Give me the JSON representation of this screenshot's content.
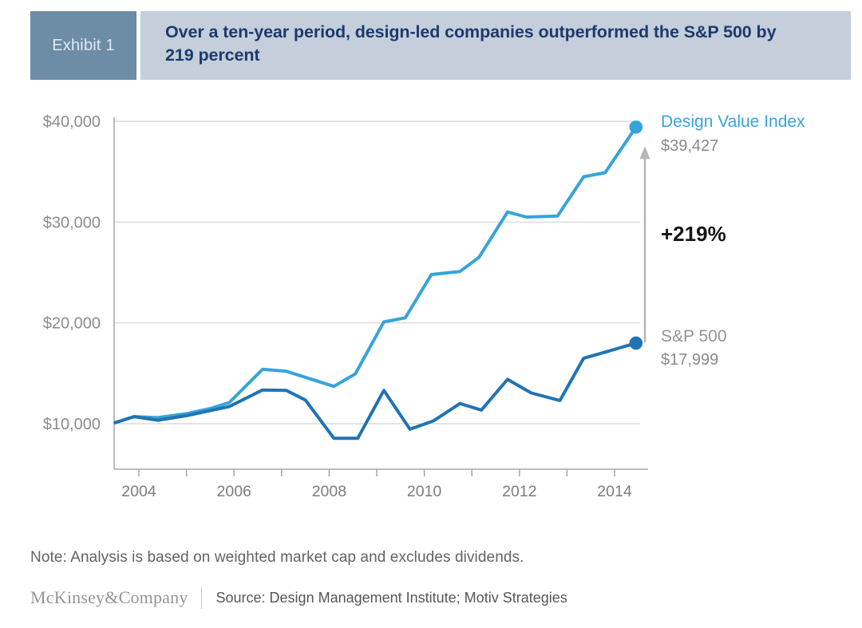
{
  "header": {
    "exhibit_label": "Exhibit 1",
    "title": "Over a ten-year period, design-led companies outperformed the S&P 500 by 219 percent"
  },
  "chart_data": {
    "type": "line",
    "title": "Over a ten-year period, design-led companies outperformed the S&P 500 by 219 percent",
    "xlabel": "",
    "ylabel": "",
    "grid": true,
    "legend_position": "right-end-labels",
    "x_axis": {
      "range": [
        2003.45,
        2014.75
      ],
      "tick_years": [
        2004,
        2005,
        2006,
        2007,
        2008,
        2009,
        2010,
        2011,
        2012,
        2013,
        2014
      ],
      "label_years": [
        "2004",
        "2006",
        "2008",
        "2010",
        "2012",
        "2014"
      ]
    },
    "y_axis": {
      "range": [
        5400,
        41000
      ],
      "ticks": [
        {
          "value": 10000,
          "label": "$10,000"
        },
        {
          "value": 20000,
          "label": "$20,000"
        },
        {
          "value": 30000,
          "label": "$30,000"
        },
        {
          "value": 40000,
          "label": "$40,000"
        }
      ]
    },
    "series": [
      {
        "name": "Design Value Index",
        "color": "#36a4d9",
        "end_value": 39427,
        "end_value_label": "$39,427",
        "points": [
          [
            2003.5,
            10100
          ],
          [
            2003.9,
            10700
          ],
          [
            2004.4,
            10600
          ],
          [
            2005.0,
            11000
          ],
          [
            2005.5,
            11500
          ],
          [
            2005.9,
            12100
          ],
          [
            2006.6,
            15400
          ],
          [
            2007.1,
            15200
          ],
          [
            2008.1,
            13700
          ],
          [
            2008.55,
            14950
          ],
          [
            2009.15,
            20100
          ],
          [
            2009.6,
            20500
          ],
          [
            2010.15,
            24800
          ],
          [
            2010.75,
            25100
          ],
          [
            2011.15,
            26500
          ],
          [
            2011.75,
            31000
          ],
          [
            2012.15,
            30500
          ],
          [
            2012.8,
            30600
          ],
          [
            2013.35,
            34500
          ],
          [
            2013.8,
            34900
          ],
          [
            2014.45,
            39427
          ]
        ]
      },
      {
        "name": "S&P 500",
        "color": "#2173b4",
        "end_value": 17999,
        "end_value_label": "$17,999",
        "points": [
          [
            2003.5,
            10100
          ],
          [
            2003.9,
            10700
          ],
          [
            2004.4,
            10350
          ],
          [
            2005.0,
            10800
          ],
          [
            2005.5,
            11300
          ],
          [
            2005.9,
            11700
          ],
          [
            2006.6,
            13350
          ],
          [
            2007.1,
            13300
          ],
          [
            2007.5,
            12350
          ],
          [
            2008.1,
            8550
          ],
          [
            2008.6,
            8550
          ],
          [
            2009.15,
            13300
          ],
          [
            2009.7,
            9450
          ],
          [
            2010.2,
            10300
          ],
          [
            2010.75,
            12000
          ],
          [
            2011.2,
            11350
          ],
          [
            2011.75,
            14400
          ],
          [
            2012.25,
            13050
          ],
          [
            2012.85,
            12300
          ],
          [
            2013.35,
            16500
          ],
          [
            2013.8,
            17100
          ],
          [
            2014.45,
            17999
          ]
        ]
      }
    ],
    "annotations": [
      {
        "type": "delta-arrow",
        "text": "+219%"
      }
    ]
  },
  "note": "Note: Analysis is based on weighted market cap and excludes dividends.",
  "footer": {
    "brand": "McKinsey&Company",
    "source": "Source: Design Management Institute; Motiv Strategies"
  },
  "colors": {
    "exhibit_badge_bg": "#6d8ca6",
    "title_band_bg": "#c4cfdb",
    "title_text": "#1c3a6e",
    "grid_line": "#dcdcdc",
    "axis_line": "#a6a6a6",
    "arrow": "#b3b6b9",
    "dvi_line": "#36a4d9",
    "sp_line": "#2173b4"
  }
}
